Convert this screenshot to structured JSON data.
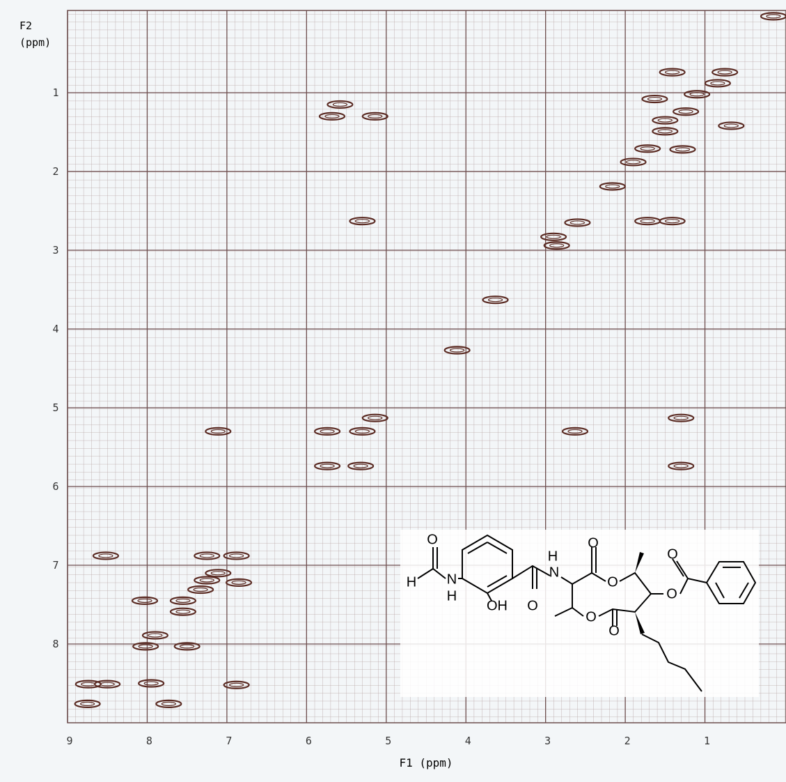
{
  "chart_data": {
    "type": "scatter",
    "xlabel": "F1 (ppm)",
    "ylabel": [
      "F2",
      "(ppm)"
    ],
    "xlim": [
      9,
      0
    ],
    "ylim": [
      0,
      9
    ],
    "xticks": [
      9,
      8,
      7,
      6,
      5,
      4,
      3,
      2,
      1
    ],
    "yticks": [
      1,
      2,
      3,
      4,
      5,
      6,
      7,
      8
    ],
    "grid": true,
    "color": "#5a2a22",
    "x": [
      0.14,
      1.41,
      0.75,
      0.84,
      1.1,
      1.63,
      1.24,
      1.5,
      1.5,
      0.67,
      1.72,
      1.28,
      1.9,
      2.16,
      2.6,
      2.9,
      2.86,
      1.72,
      1.41,
      5.68,
      5.14,
      5.58,
      5.3,
      3.63,
      4.11,
      5.74,
      5.3,
      5.14,
      2.63,
      1.3,
      1.3,
      5.74,
      5.32,
      7.11,
      8.52,
      7.25,
      6.88,
      7.11,
      7.25,
      6.85,
      7.33,
      8.03,
      7.55,
      7.55,
      7.9,
      8.02,
      7.5,
      8.74,
      8.5,
      6.88,
      8.75,
      7.73,
      7.95
    ],
    "values": [
      0.03,
      0.74,
      0.74,
      0.88,
      1.02,
      1.08,
      1.24,
      1.35,
      1.49,
      1.42,
      1.71,
      1.72,
      1.88,
      2.19,
      2.65,
      2.83,
      2.94,
      2.63,
      2.63,
      1.3,
      1.3,
      1.15,
      2.63,
      3.63,
      4.27,
      5.3,
      5.3,
      5.13,
      5.3,
      5.13,
      5.74,
      5.74,
      5.74,
      5.3,
      6.88,
      6.88,
      6.88,
      7.1,
      7.19,
      7.22,
      7.31,
      7.45,
      7.45,
      7.59,
      7.89,
      8.03,
      8.03,
      8.51,
      8.51,
      8.52,
      8.76,
      8.76,
      8.5
    ]
  },
  "structure": {
    "atoms": [
      "O",
      "H",
      "N",
      "H",
      "OH",
      "O",
      "N",
      "H",
      "O",
      "O",
      "O",
      "O",
      "O",
      "O"
    ]
  }
}
